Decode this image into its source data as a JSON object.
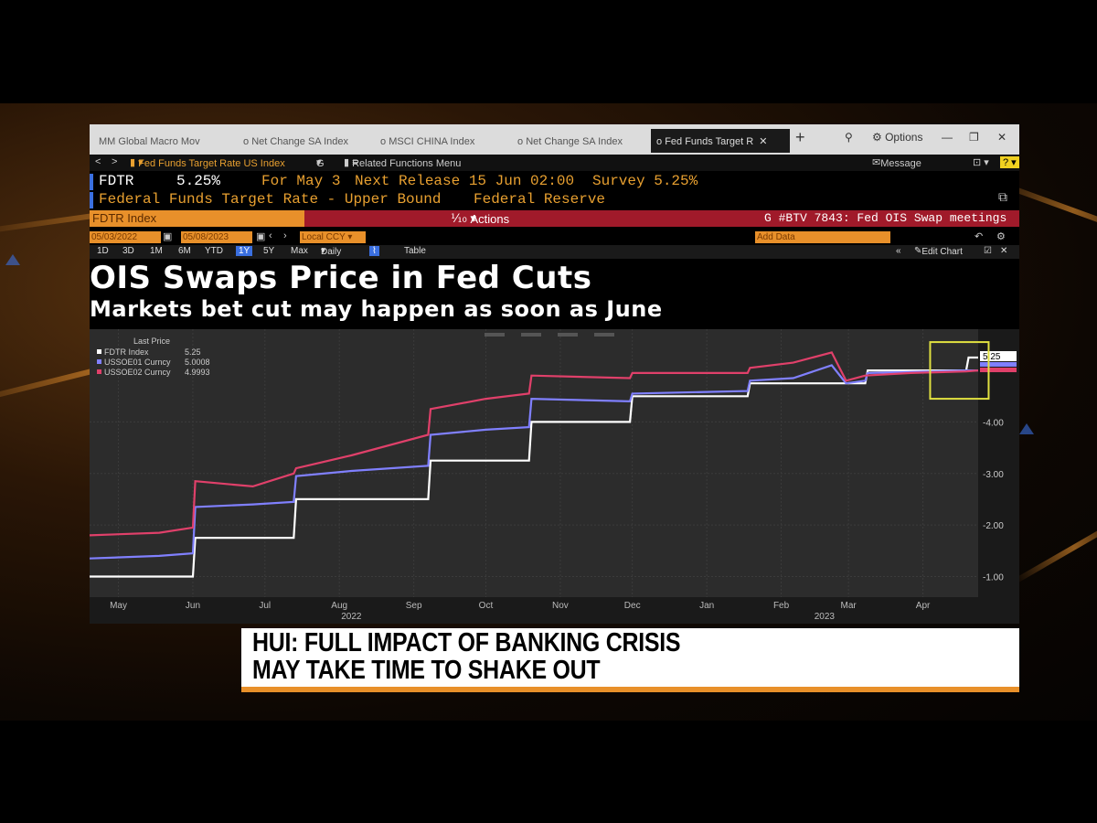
{
  "tabs": [
    {
      "label": "Global Macro Mov",
      "prefix": "MM"
    },
    {
      "label": "Net Change SA Index",
      "prefix": "o"
    },
    {
      "label": "MSCI CHINA Index",
      "prefix": "o"
    },
    {
      "label": "Net Change SA Index",
      "prefix": "o"
    },
    {
      "label": "Fed Funds Target R",
      "prefix": "o"
    }
  ],
  "window": {
    "options_label": "Options",
    "message_label": "Message"
  },
  "nav": {
    "security": "Fed Funds Target Rate US Index",
    "g_menu": "G",
    "related": "Related Functions Menu"
  },
  "header": {
    "ticker": "FDTR",
    "price": "5.25%",
    "for_label": "For May 3",
    "next_release": "Next Release 15 Jun 02:00",
    "survey": "Survey 5.25%",
    "description": "Federal Funds Target Rate - Upper Bound",
    "source": "Federal Reserve"
  },
  "actionbar": {
    "index_label": "FDTR Index",
    "actions": "Actions",
    "chart_code": "G #BTV 7843: Fed OIS Swap meetings"
  },
  "dates": {
    "start": "05/03/2022",
    "end": "05/08/2023",
    "ccy": "Local CCY"
  },
  "ranges": [
    "1D",
    "3D",
    "1M",
    "6M",
    "YTD",
    "1Y",
    "5Y",
    "Max"
  ],
  "selected_range": "1Y",
  "frequency": "Daily",
  "table_label": "Table",
  "add_data": "Add Data",
  "edit_chart": "Edit Chart",
  "headline": {
    "title": "OIS Swaps Price in Fed Cuts",
    "subtitle": "Markets bet cut may happen as soon as June"
  },
  "chart_data": {
    "type": "line",
    "legend_title": "Last Price",
    "grid": true,
    "legend": "top-left",
    "ylim": [
      0.6,
      5.8
    ],
    "yticks": [
      "1.00",
      "2.00",
      "3.00",
      "4.00"
    ],
    "last_value_label": "5.25",
    "xticks": [
      "May",
      "Jun",
      "Jul",
      "Aug",
      "Sep",
      "Oct",
      "Nov",
      "Dec",
      "Jan",
      "Feb",
      "Mar",
      "Apr"
    ],
    "year_labels": [
      "2022",
      "2023"
    ],
    "series": [
      {
        "name": "FDTR Index",
        "last": "5.25",
        "color": "#ffffff",
        "points": [
          [
            "2022-05-03",
            1.0
          ],
          [
            "2022-06-15",
            1.0
          ],
          [
            "2022-06-16",
            1.75
          ],
          [
            "2022-07-27",
            1.75
          ],
          [
            "2022-07-28",
            2.5
          ],
          [
            "2022-09-21",
            2.5
          ],
          [
            "2022-09-22",
            3.25
          ],
          [
            "2022-11-02",
            3.25
          ],
          [
            "2022-11-03",
            4.0
          ],
          [
            "2022-12-14",
            4.0
          ],
          [
            "2022-12-15",
            4.5
          ],
          [
            "2023-02-01",
            4.5
          ],
          [
            "2023-02-02",
            4.75
          ],
          [
            "2023-03-22",
            4.75
          ],
          [
            "2023-03-23",
            5.0
          ],
          [
            "2023-05-03",
            5.0
          ],
          [
            "2023-05-04",
            5.25
          ],
          [
            "2023-05-08",
            5.25
          ]
        ]
      },
      {
        "name": "USSOE01 Curncy",
        "last": "5.0008",
        "color": "#8080ff",
        "points": [
          [
            "2022-05-03",
            1.35
          ],
          [
            "2022-06-01",
            1.4
          ],
          [
            "2022-06-15",
            1.45
          ],
          [
            "2022-06-16",
            2.35
          ],
          [
            "2022-07-10",
            2.4
          ],
          [
            "2022-07-27",
            2.45
          ],
          [
            "2022-07-28",
            2.95
          ],
          [
            "2022-08-20",
            3.05
          ],
          [
            "2022-09-21",
            3.15
          ],
          [
            "2022-09-22",
            3.75
          ],
          [
            "2022-10-15",
            3.85
          ],
          [
            "2022-11-02",
            3.9
          ],
          [
            "2022-11-03",
            4.45
          ],
          [
            "2022-12-14",
            4.4
          ],
          [
            "2022-12-15",
            4.55
          ],
          [
            "2023-02-01",
            4.6
          ],
          [
            "2023-02-02",
            4.8
          ],
          [
            "2023-02-20",
            4.85
          ],
          [
            "2023-03-08",
            5.1
          ],
          [
            "2023-03-14",
            4.75
          ],
          [
            "2023-03-22",
            4.8
          ],
          [
            "2023-03-23",
            4.95
          ],
          [
            "2023-05-03",
            5.0
          ],
          [
            "2023-05-08",
            5.0
          ]
        ]
      },
      {
        "name": "USSOE02 Curncy",
        "last": "4.9993",
        "color": "#e0406a",
        "points": [
          [
            "2022-05-03",
            1.8
          ],
          [
            "2022-06-01",
            1.85
          ],
          [
            "2022-06-15",
            1.95
          ],
          [
            "2022-06-16",
            2.85
          ],
          [
            "2022-07-10",
            2.75
          ],
          [
            "2022-07-27",
            3.0
          ],
          [
            "2022-07-28",
            3.1
          ],
          [
            "2022-08-20",
            3.35
          ],
          [
            "2022-09-21",
            3.75
          ],
          [
            "2022-09-22",
            4.25
          ],
          [
            "2022-10-15",
            4.45
          ],
          [
            "2022-11-02",
            4.55
          ],
          [
            "2022-11-03",
            4.9
          ],
          [
            "2022-12-14",
            4.85
          ],
          [
            "2022-12-15",
            4.95
          ],
          [
            "2023-02-01",
            4.95
          ],
          [
            "2023-02-02",
            5.05
          ],
          [
            "2023-02-20",
            5.15
          ],
          [
            "2023-03-08",
            5.35
          ],
          [
            "2023-03-14",
            4.8
          ],
          [
            "2023-03-22",
            4.9
          ],
          [
            "2023-04-10",
            4.95
          ],
          [
            "2023-05-03",
            4.98
          ],
          [
            "2023-05-08",
            5.0
          ]
        ]
      }
    ]
  },
  "lower_third": {
    "line1": "HUI: FULL IMPACT OF BANKING CRISIS",
    "line2": "MAY TAKE TIME TO SHAKE OUT"
  }
}
